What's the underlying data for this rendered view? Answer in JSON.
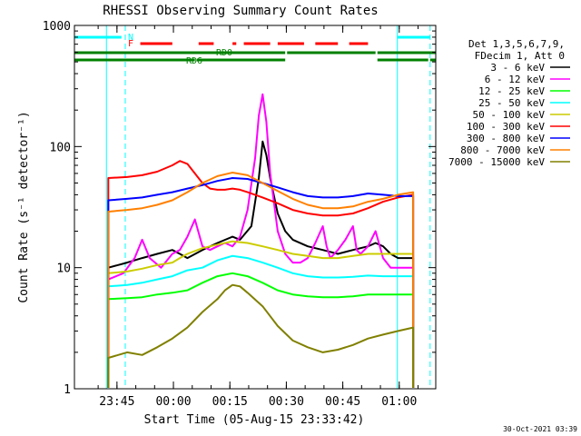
{
  "chart_data": {
    "type": "line",
    "title": "RHESSI Observing Summary Count Rates",
    "xlabel": "Start Time (05-Aug-15 23:33:42)",
    "ylabel": "Count Rate (s⁻¹ detector⁻¹)",
    "ylog": true,
    "ylim": [
      1,
      1000
    ],
    "xlim_minutes": [
      0,
      96
    ],
    "x_ticks": [
      {
        "min": 11.3,
        "label": "23:45"
      },
      {
        "min": 26.3,
        "label": "00:00"
      },
      {
        "min": 41.3,
        "label": "00:15"
      },
      {
        "min": 56.3,
        "label": "00:30"
      },
      {
        "min": 71.3,
        "label": "00:45"
      },
      {
        "min": 86.3,
        "label": "01:00"
      }
    ],
    "y_ticks": [
      {
        "value": 1,
        "label": "1"
      },
      {
        "value": 10,
        "label": "10"
      },
      {
        "value": 100,
        "label": "100"
      },
      {
        "value": 1000,
        "label": "1000"
      }
    ],
    "legend": {
      "position": "right",
      "header": [
        "Det 1,3,5,6,7,9,",
        "FDecim 1, Att 0"
      ]
    },
    "series": [
      {
        "name": "3 - 6 keV",
        "color": "#000000",
        "points": [
          [
            9,
            10
          ],
          [
            14,
            11
          ],
          [
            18,
            12
          ],
          [
            22,
            13
          ],
          [
            26,
            14
          ],
          [
            28,
            13
          ],
          [
            30,
            12
          ],
          [
            34,
            14
          ],
          [
            38,
            16
          ],
          [
            42,
            18
          ],
          [
            44,
            17
          ],
          [
            47,
            22
          ],
          [
            49,
            55
          ],
          [
            50,
            110
          ],
          [
            51,
            85
          ],
          [
            52,
            55
          ],
          [
            54,
            28
          ],
          [
            56,
            20
          ],
          [
            58,
            17
          ],
          [
            62,
            15
          ],
          [
            66,
            14
          ],
          [
            70,
            13
          ],
          [
            74,
            14
          ],
          [
            78,
            15
          ],
          [
            80,
            16
          ],
          [
            82,
            15
          ],
          [
            84,
            13
          ],
          [
            86,
            12
          ],
          [
            90,
            12
          ]
        ]
      },
      {
        "name": "6 - 12 keV",
        "color": "#ff00ff",
        "points": [
          [
            9,
            8
          ],
          [
            13,
            9
          ],
          [
            16,
            12
          ],
          [
            18,
            17
          ],
          [
            20,
            12
          ],
          [
            23,
            10
          ],
          [
            26,
            13
          ],
          [
            28,
            14
          ],
          [
            30,
            18
          ],
          [
            32,
            25
          ],
          [
            34,
            15
          ],
          [
            36,
            14
          ],
          [
            38,
            15
          ],
          [
            40,
            16
          ],
          [
            42,
            15
          ],
          [
            44,
            18
          ],
          [
            46,
            30
          ],
          [
            48,
            80
          ],
          [
            49,
            180
          ],
          [
            50,
            270
          ],
          [
            51,
            160
          ],
          [
            52,
            60
          ],
          [
            54,
            20
          ],
          [
            56,
            13
          ],
          [
            58,
            11
          ],
          [
            60,
            11
          ],
          [
            62,
            12
          ],
          [
            64,
            16
          ],
          [
            66,
            22
          ],
          [
            67,
            15
          ],
          [
            68,
            12
          ],
          [
            70,
            14
          ],
          [
            72,
            17
          ],
          [
            74,
            22
          ],
          [
            75,
            14
          ],
          [
            76,
            13
          ],
          [
            78,
            15
          ],
          [
            80,
            20
          ],
          [
            82,
            12
          ],
          [
            84,
            10
          ],
          [
            86,
            10
          ],
          [
            90,
            10
          ]
        ]
      },
      {
        "name": "12 - 25 keV",
        "color": "#00ff00",
        "points": [
          [
            9,
            5.5
          ],
          [
            14,
            5.6
          ],
          [
            18,
            5.7
          ],
          [
            22,
            6
          ],
          [
            26,
            6.2
          ],
          [
            30,
            6.5
          ],
          [
            34,
            7.5
          ],
          [
            38,
            8.5
          ],
          [
            42,
            9
          ],
          [
            46,
            8.5
          ],
          [
            50,
            7.5
          ],
          [
            54,
            6.5
          ],
          [
            58,
            6
          ],
          [
            62,
            5.8
          ],
          [
            66,
            5.7
          ],
          [
            70,
            5.7
          ],
          [
            74,
            5.8
          ],
          [
            78,
            6
          ],
          [
            82,
            6
          ],
          [
            86,
            6
          ],
          [
            90,
            6
          ]
        ]
      },
      {
        "name": "25 - 50 keV",
        "color": "#00ffff",
        "points": [
          [
            9,
            7
          ],
          [
            14,
            7.2
          ],
          [
            18,
            7.5
          ],
          [
            22,
            8
          ],
          [
            26,
            8.5
          ],
          [
            28,
            9
          ],
          [
            30,
            9.5
          ],
          [
            34,
            10
          ],
          [
            38,
            11.5
          ],
          [
            42,
            12.5
          ],
          [
            46,
            12
          ],
          [
            50,
            11
          ],
          [
            54,
            10
          ],
          [
            58,
            9
          ],
          [
            62,
            8.5
          ],
          [
            66,
            8.3
          ],
          [
            70,
            8.3
          ],
          [
            74,
            8.4
          ],
          [
            78,
            8.6
          ],
          [
            82,
            8.5
          ],
          [
            86,
            8.5
          ],
          [
            90,
            8.5
          ]
        ]
      },
      {
        "name": "50 - 100 keV",
        "color": "#cccc00",
        "points": [
          [
            9,
            9
          ],
          [
            14,
            9.3
          ],
          [
            18,
            9.8
          ],
          [
            22,
            10.5
          ],
          [
            26,
            11
          ],
          [
            28,
            12
          ],
          [
            30,
            13
          ],
          [
            34,
            14.5
          ],
          [
            38,
            15.5
          ],
          [
            42,
            16.5
          ],
          [
            46,
            16
          ],
          [
            50,
            15
          ],
          [
            54,
            14
          ],
          [
            58,
            13
          ],
          [
            62,
            12.5
          ],
          [
            66,
            12
          ],
          [
            70,
            12
          ],
          [
            74,
            12.5
          ],
          [
            78,
            13
          ],
          [
            82,
            13
          ],
          [
            86,
            13
          ],
          [
            90,
            13
          ]
        ]
      },
      {
        "name": "100 - 300 keV",
        "color": "#ff0000",
        "points": [
          [
            9,
            55
          ],
          [
            14,
            56
          ],
          [
            18,
            58
          ],
          [
            22,
            62
          ],
          [
            26,
            70
          ],
          [
            28,
            76
          ],
          [
            30,
            72
          ],
          [
            34,
            50
          ],
          [
            36,
            45
          ],
          [
            38,
            44
          ],
          [
            40,
            44
          ],
          [
            42,
            45
          ],
          [
            44,
            44
          ],
          [
            46,
            42
          ],
          [
            50,
            38
          ],
          [
            54,
            34
          ],
          [
            58,
            30
          ],
          [
            62,
            28
          ],
          [
            66,
            27
          ],
          [
            70,
            27
          ],
          [
            74,
            28
          ],
          [
            78,
            31
          ],
          [
            82,
            35
          ],
          [
            86,
            38
          ],
          [
            90,
            40
          ]
        ]
      },
      {
        "name": "300 - 800 keV",
        "color": "#0000ff",
        "points": [
          [
            9,
            36
          ],
          [
            14,
            37
          ],
          [
            18,
            38
          ],
          [
            22,
            40
          ],
          [
            26,
            42
          ],
          [
            30,
            45
          ],
          [
            34,
            48
          ],
          [
            38,
            52
          ],
          [
            42,
            55
          ],
          [
            46,
            54
          ],
          [
            50,
            50
          ],
          [
            54,
            46
          ],
          [
            58,
            42
          ],
          [
            62,
            39
          ],
          [
            66,
            38
          ],
          [
            70,
            38
          ],
          [
            74,
            39
          ],
          [
            78,
            41
          ],
          [
            82,
            40
          ],
          [
            86,
            39
          ],
          [
            90,
            39
          ]
        ]
      },
      {
        "name": "800 - 7000 keV",
        "color": "#ff8000",
        "points": [
          [
            9,
            29
          ],
          [
            14,
            30
          ],
          [
            18,
            31
          ],
          [
            22,
            33
          ],
          [
            26,
            36
          ],
          [
            30,
            42
          ],
          [
            34,
            50
          ],
          [
            38,
            57
          ],
          [
            42,
            61
          ],
          [
            46,
            58
          ],
          [
            50,
            50
          ],
          [
            54,
            43
          ],
          [
            58,
            37
          ],
          [
            62,
            33
          ],
          [
            66,
            31
          ],
          [
            70,
            31
          ],
          [
            74,
            32
          ],
          [
            78,
            35
          ],
          [
            82,
            37
          ],
          [
            86,
            40
          ],
          [
            90,
            42
          ]
        ]
      },
      {
        "name": "7000 - 15000 keV",
        "color": "#808000",
        "points": [
          [
            9,
            1.8
          ],
          [
            14,
            2
          ],
          [
            18,
            1.9
          ],
          [
            22,
            2.2
          ],
          [
            26,
            2.6
          ],
          [
            30,
            3.2
          ],
          [
            34,
            4.3
          ],
          [
            38,
            5.5
          ],
          [
            40,
            6.5
          ],
          [
            42,
            7.2
          ],
          [
            44,
            7
          ],
          [
            46,
            6.2
          ],
          [
            50,
            4.8
          ],
          [
            54,
            3.3
          ],
          [
            58,
            2.5
          ],
          [
            62,
            2.2
          ],
          [
            66,
            2
          ],
          [
            70,
            2.1
          ],
          [
            74,
            2.3
          ],
          [
            78,
            2.6
          ],
          [
            82,
            2.8
          ],
          [
            86,
            3
          ],
          [
            90,
            3.2
          ]
        ]
      }
    ],
    "annotations": [
      {
        "text": "N",
        "color": "#00ffff"
      },
      {
        "text": "F",
        "color": "#ff0000"
      },
      {
        "text": "RD0",
        "color": "#008000"
      },
      {
        "text": "RD6",
        "color": "#008000"
      }
    ],
    "flag_bars": {
      "N": {
        "color": "#00ffff",
        "segments": [
          [
            0,
            12.5
          ],
          [
            85.8,
            94.5
          ]
        ]
      },
      "F": {
        "color": "#ff0000",
        "segments": [
          [
            17.5,
            26
          ],
          [
            33,
            37
          ],
          [
            42,
            43
          ],
          [
            45,
            52
          ],
          [
            54,
            61
          ],
          [
            64,
            70
          ],
          [
            73,
            78
          ]
        ]
      },
      "RD0": {
        "color": "#008000",
        "segments": [
          [
            0,
            56
          ],
          [
            56.5,
            80
          ],
          [
            80.5,
            96
          ]
        ]
      },
      "RD6": {
        "color": "#008000",
        "segments": [
          [
            0,
            32
          ],
          [
            32.5,
            56
          ],
          [
            80.5,
            94
          ],
          [
            94.5,
            96
          ]
        ]
      }
    },
    "vertical_lines": [
      {
        "min": 8.5,
        "style": "solid",
        "color": "#00ffff"
      },
      {
        "min": 13.5,
        "style": "dashed",
        "color": "#00ffff"
      },
      {
        "min": 85.8,
        "style": "solid",
        "color": "#00ffff"
      },
      {
        "min": 94.5,
        "style": "dashed",
        "color": "#00ffff"
      }
    ],
    "footer_timestamp": "30-Oct-2021 03:39"
  }
}
